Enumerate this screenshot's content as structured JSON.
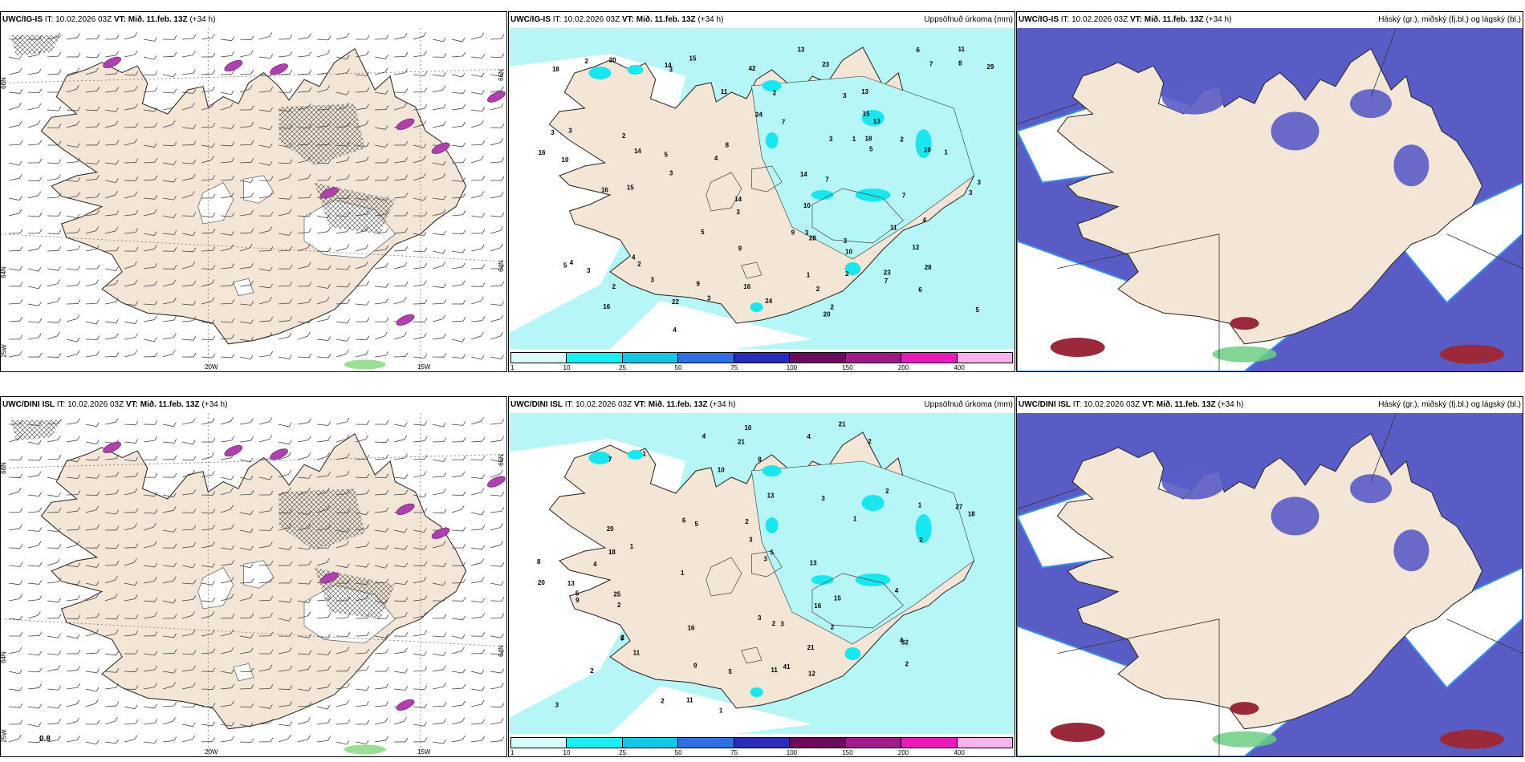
{
  "header_common": {
    "it_label": "IT:",
    "it_value": "10.02.2026 03Z",
    "vt_label": "VT:",
    "vt_value": "Mið. 11.feb. 13Z",
    "lead": "(+34 h)"
  },
  "rows": [
    {
      "model": "UWC/IG-IS",
      "wind_panel": {
        "lat_left_top": "66N",
        "lat_left_bottom": "64N",
        "lat_left_low": "25W",
        "lat_right_top": "66N",
        "lat_right_bottom": "64N",
        "lon_20": "20W",
        "lon_15": "15W",
        "corner_value": ""
      },
      "precip_panel": {
        "title_right": "Uppsöfnuð úrkoma (mm)"
      },
      "cloud_panel": {
        "title_right": "Háský (gr.), miðský (fj.bl.) og lágský (bl.)"
      }
    },
    {
      "model": "UWC/DINI ISL",
      "wind_panel": {
        "lat_left_top": "66N",
        "lat_left_bottom": "64N",
        "lat_left_low": "25W",
        "lat_right_top": "66N",
        "lat_right_bottom": "64N",
        "lon_20": "20W",
        "lon_15": "15W",
        "corner_value": "0.8"
      },
      "precip_panel": {
        "title_right": "Uppsöfnuð úrkoma (mm)"
      },
      "cloud_panel": {
        "title_right": "Háský (gr.), miðský (fj.bl.) og lágský (bl.)"
      }
    }
  ],
  "colorbar": {
    "labels": [
      "1",
      "10",
      "25",
      "50",
      "75",
      "100",
      "150",
      "200",
      "400"
    ],
    "colors": [
      "#d9fbfb",
      "#19eef0",
      "#12c6e6",
      "#2f6fe0",
      "#2b2db8",
      "#6a0a5a",
      "#a01a8a",
      "#e81ab8",
      "#f6b4ee"
    ]
  },
  "colors": {
    "land": "#f3e6d6",
    "land_cloud": "#e6d6c4",
    "sea_precip_light": "#b6f6f6",
    "precip_mid": "#19e6ee",
    "cloud_low": "#5a5cc6",
    "cloud_edge": "#3a8ef0",
    "cloud_high_red": "#9a2a3a",
    "cloud_mid_green": "#6cce82",
    "wind_purple": "#b040b0",
    "wind_green": "#7fd87a"
  },
  "precip_numbers_top": [
    "2",
    "3",
    "2",
    "2",
    "2",
    "2",
    "3",
    "3",
    "3",
    "3",
    "3",
    "3",
    "14",
    "3",
    "5",
    "6",
    "10",
    "7",
    "11",
    "10",
    "23",
    "28",
    "22",
    "7",
    "7",
    "13",
    "15",
    "14",
    "24",
    "11",
    "10",
    "11",
    "13",
    "9",
    "15",
    "16",
    "13",
    "3",
    "3",
    "3",
    "42",
    "14",
    "29",
    "28",
    "23",
    "4",
    "9",
    "9",
    "10",
    "8",
    "5",
    "7",
    "5",
    "15",
    "18",
    "5",
    "6",
    "8",
    "4",
    "5",
    "16",
    "20",
    "18",
    "16",
    "14",
    "16",
    "20",
    "1",
    "2",
    "4",
    "1",
    "3",
    "2",
    "2",
    "3",
    "12",
    "7",
    "4",
    "1",
    "4",
    "24",
    "2",
    "3"
  ],
  "precip_numbers_bottom": [
    "2",
    "2",
    "1",
    "2",
    "2",
    "1",
    "2",
    "2",
    "1",
    "1",
    "13",
    "10",
    "2",
    "3",
    "1",
    "4",
    "2",
    "8",
    "8",
    "11",
    "12",
    "21",
    "10",
    "5",
    "3",
    "9",
    "5",
    "4",
    "13",
    "15",
    "20",
    "11",
    "41",
    "3",
    "32",
    "9",
    "27",
    "13",
    "3",
    "4",
    "18",
    "8",
    "5",
    "25",
    "20",
    "18",
    "16",
    "11",
    "16",
    "21",
    "5",
    "2",
    "2",
    "2",
    "1",
    "3",
    "6",
    "4",
    "7",
    "4",
    "3",
    "21"
  ],
  "precip_numbers_top_xy": [],
  "cloud_panel_note": ""
}
